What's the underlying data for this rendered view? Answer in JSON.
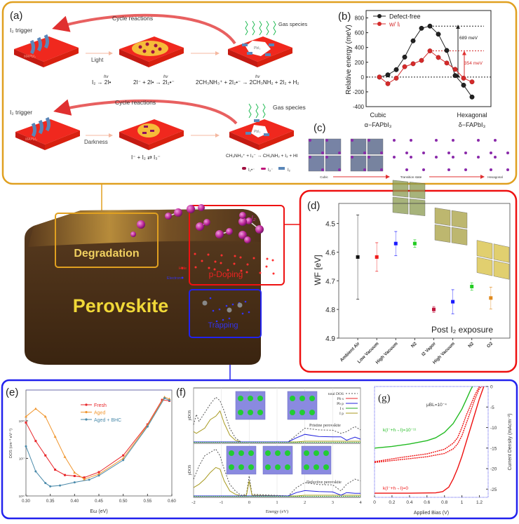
{
  "panel_a": {
    "label": "(a)",
    "row1": {
      "cycle": "Cycle reactions",
      "trigger": "I₂ trigger",
      "condition": "Light",
      "gas": "Gas species",
      "substrate": "MAPbI₃",
      "product": "PbI₂",
      "hv": "hν",
      "eq1": "I₂ → 2I•",
      "eq2": "2I⁻ + 2I• → 2I₂•⁻",
      "eq3": "2CH₃NH₃⁺ + 2I₂•⁻ → 2CH₃NH₂ + 2I₂ + H₂"
    },
    "row2": {
      "cycle": "Cycle reactions",
      "trigger": "I₂ trigger",
      "condition": "Darkness",
      "gas": "Gas species",
      "substrate": "MAPbI₃",
      "product": "PbI₂",
      "eq1": "I⁻ + I₂ ⇄ I₃⁻",
      "eq2": "CH₃NH₃⁺ + I₃⁻ → CH₃NH₂ + I₂ + HI"
    },
    "legend": [
      "I₂•⁻",
      "I₃⁻",
      "I₂"
    ]
  },
  "chart_data": [
    {
      "id": "b",
      "label": "(b)",
      "type": "line",
      "ylabel": "Relative energy (meV)",
      "ylim": [
        -400,
        900
      ],
      "yticks": [
        800,
        600,
        400,
        200,
        0,
        -200,
        -400
      ],
      "xcat_left": [
        "Cubic",
        "α−FAPbI₃"
      ],
      "xcat_right": [
        "Hexagonal",
        "δ−FAPbI₃"
      ],
      "x": [
        0,
        1,
        2,
        3,
        4,
        5,
        6,
        7,
        8,
        9,
        10,
        11
      ],
      "series": [
        {
          "name": "Defect-free",
          "color": "#222222",
          "values": [
            0,
            30,
            100,
            270,
            490,
            660,
            689,
            580,
            360,
            20,
            -110,
            -270
          ]
        },
        {
          "name": "w/ Iᵢ",
          "color": "#d42a2a",
          "values": [
            0,
            -90,
            -15,
            140,
            180,
            225,
            354,
            265,
            190,
            105,
            -15,
            -65
          ]
        }
      ],
      "annotations": [
        "689 meV",
        "354 meV"
      ]
    },
    {
      "id": "d",
      "label": "(d)",
      "type": "scatter",
      "ylabel": "WF [eV]",
      "ylim": [
        4.43,
        4.9
      ],
      "y_inverted": true,
      "yticks": [
        4.5,
        4.6,
        4.7,
        4.8,
        4.9
      ],
      "categories": [
        "Ambient Air",
        "Low Vacuum",
        "High Vacuum",
        "N2",
        "I2 Vapor",
        "High Vacuum",
        "N2",
        "O2"
      ],
      "values": [
        4.617,
        4.617,
        4.57,
        4.57,
        4.8,
        4.773,
        4.72,
        4.76
      ],
      "errors": [
        0.147,
        0.05,
        0.042,
        0.013,
        0.01,
        0.042,
        0.013,
        0.038
      ],
      "colors": [
        "#111111",
        "#ee1c1c",
        "#1a1aff",
        "#22cc22",
        "#c0143c",
        "#1a1aff",
        "#22cc22",
        "#e08a1e"
      ],
      "annotation": "Post I₂ exposure"
    },
    {
      "id": "e",
      "label": "(e)",
      "type": "line",
      "xlabel": "Eω (eV)",
      "ylabel": "DOS (cm⁻³ eV⁻¹)",
      "xlim": [
        0.3,
        0.6
      ],
      "xticks": [
        "0.30",
        "0.35",
        "0.40",
        "0.45",
        "0.50",
        "0.55",
        "0.60"
      ],
      "y_scale": "log",
      "ylim": [
        1e+16,
        6.6e+18
      ],
      "yticks": [
        "10¹⁶",
        "10¹⁷",
        "10¹⁸"
      ],
      "legend_position": "top-center",
      "series": [
        {
          "name": "Fresh",
          "color": "#e8262a",
          "x": [
            0.3,
            0.32,
            0.34,
            0.36,
            0.38,
            0.4,
            0.42,
            0.45,
            0.5,
            0.55,
            0.58,
            0.595
          ],
          "y": [
            9e+17,
            2.9e+17,
            1.2e+17,
            5e+16,
            3.6e+16,
            3.4e+16,
            3.1e+16,
            4.3e+16,
            1.2e+17,
            8e+17,
            3.6e+18,
            3.4e+18
          ]
        },
        {
          "name": "Aged",
          "color": "#f0962e",
          "x": [
            0.3,
            0.32,
            0.34,
            0.36,
            0.38,
            0.4,
            0.42,
            0.45,
            0.5,
            0.55,
            0.585,
            0.595
          ],
          "y": [
            1.3e+18,
            2.1e+18,
            1.3e+18,
            3.8e+17,
            1.1e+17,
            4.2e+16,
            2.8e+16,
            3.8e+16,
            1e+17,
            7.5e+17,
            4.3e+18,
            3.8e+18
          ]
        },
        {
          "name": "Aged + BHC",
          "color": "#4a8aaa",
          "x": [
            0.3,
            0.32,
            0.34,
            0.35,
            0.37,
            0.4,
            0.43,
            0.45,
            0.5,
            0.55,
            0.585,
            0.595
          ],
          "y": [
            2.1e+17,
            4.5e+16,
            2.2e+16,
            1.8e+16,
            1.9e+16,
            2.3e+16,
            2.7e+16,
            3.5e+16,
            9e+16,
            7e+17,
            4e+18,
            3.5e+18
          ]
        }
      ]
    },
    {
      "id": "f",
      "label": "(f)",
      "type": "line",
      "xlabel": "Energy (eV)",
      "ylabel": "pDOS",
      "xlim": [
        -2,
        4
      ],
      "xticks": [
        "-2",
        "-1",
        "0",
        "1",
        "2",
        "3",
        "4"
      ],
      "legend": [
        {
          "name": "total DOS",
          "color": "#555555",
          "dash": true
        },
        {
          "name": "Pb s",
          "color": "#e8262a"
        },
        {
          "name": "Pb p",
          "color": "#2222dd"
        },
        {
          "name": "I s",
          "color": "#22aa22"
        },
        {
          "name": "I p",
          "color": "#a89a20"
        }
      ],
      "subpanels": [
        {
          "name": "Pristine perovskite",
          "x": [
            -2,
            -1.9,
            -1.8,
            -1.6,
            -1.4,
            -1.2,
            -1.05,
            -0.9,
            -0.7,
            -0.5,
            -0.3,
            1.4,
            1.7,
            2.0,
            2.5,
            3.0,
            3.3,
            3.5,
            3.8,
            4.0
          ],
          "total": [
            0.5,
            0.8,
            0.6,
            0.85,
            1.1,
            1.3,
            1.2,
            0.9,
            0.4,
            0.12,
            0,
            0,
            0.2,
            0.4,
            0.35,
            0.34,
            0.25,
            0.3,
            0.45,
            0.35
          ],
          "Ip": [
            0.3,
            0.25,
            0.3,
            0.4,
            0.65,
            0.75,
            0.9,
            0.55,
            0.2,
            0.05,
            0,
            0,
            0,
            0.02,
            0.02,
            0.02,
            0.02,
            0.02,
            0.02,
            0.02
          ],
          "Pbp": [
            0,
            0,
            0,
            0,
            0,
            0,
            0,
            0,
            0,
            0,
            0,
            0,
            0.12,
            0.22,
            0.16,
            0.15,
            0.15,
            0.05,
            0.14,
            0.08
          ]
        },
        {
          "name": "Defective perovskite",
          "x": [
            -2,
            -1.8,
            -1.6,
            -1.4,
            -1.2,
            -1.05,
            -0.9,
            -0.7,
            -0.5,
            -0.3,
            -0.1,
            0,
            0.1,
            1.4,
            1.7,
            2.0,
            2.5,
            3.0,
            3.3,
            3.5,
            3.8,
            4.0
          ],
          "total": [
            0.5,
            0.9,
            1.2,
            1.3,
            1.4,
            1.2,
            0.8,
            0.35,
            0.15,
            0.02,
            0.05,
            0.6,
            0.05,
            0,
            0.25,
            0.4,
            0.34,
            0.33,
            0.15,
            0.35,
            0.5,
            0.45
          ],
          "Ip": [
            0.25,
            0.35,
            0.5,
            0.7,
            0.85,
            0.8,
            0.45,
            0.15,
            0.05,
            0,
            0.02,
            0.45,
            0.02,
            0,
            0,
            0.02,
            0.02,
            0.02,
            0.02,
            0.02,
            0.02,
            0.02
          ],
          "Pbp": [
            0,
            0,
            0,
            0,
            0,
            0,
            0,
            0,
            0,
            0,
            0,
            0,
            0,
            0,
            0.1,
            0.16,
            0.13,
            0.12,
            0.02,
            0.1,
            0.08,
            0.08
          ]
        }
      ]
    },
    {
      "id": "g",
      "label": "(g)",
      "type": "line",
      "xlabel": "Applied Bias (V)",
      "ylabel": "Current Density (mAcm⁻²)",
      "xlim": [
        0,
        1.3
      ],
      "ylim": [
        -27,
        0
      ],
      "xticks": [
        "0",
        "0.2",
        "0.4",
        "0.6",
        "0.8",
        "1",
        "1.2"
      ],
      "yticks": [
        "0",
        "-5",
        "-10",
        "-15",
        "-20",
        "-25"
      ],
      "annotations": [
        {
          "text": "μBL=10⁻⁴",
          "color": "#333333"
        },
        {
          "text": "k(I⁻+h→I)=10⁻¹¹",
          "color": "#22bb22"
        },
        {
          "text": "k(I⁻+h→I)=0",
          "color": "#ee1111"
        }
      ],
      "series": [
        {
          "color": "#22bb22",
          "dash": false,
          "x": [
            0,
            0.2,
            0.4,
            0.6,
            0.7,
            0.8,
            0.9,
            1.0,
            1.05,
            1.1,
            1.12
          ],
          "y": [
            -15,
            -14.6,
            -14,
            -13.2,
            -12.5,
            -11.2,
            -9,
            -5.5,
            -3.2,
            -0.8,
            0
          ]
        },
        {
          "color": "#ee1111",
          "dash": true,
          "x": [
            0,
            0.3,
            0.6,
            0.8,
            0.9,
            0.95,
            1.0,
            1.05,
            1.1,
            1.15,
            1.2,
            1.23
          ],
          "y": [
            -18.5,
            -17.8,
            -17.1,
            -16.3,
            -15.2,
            -14,
            -12,
            -9,
            -6,
            -3,
            -0.5,
            0
          ]
        },
        {
          "color": "#ee1111",
          "dash": true,
          "x": [
            0,
            0.3,
            0.6,
            0.8,
            0.9,
            0.95,
            1.0,
            1.05,
            1.1,
            1.15,
            1.2
          ],
          "y": [
            -18.3,
            -17.3,
            -16.4,
            -15.3,
            -13.8,
            -12.5,
            -10,
            -7,
            -4.5,
            -2,
            0
          ]
        },
        {
          "color": "#ee1111",
          "dash": false,
          "x": [
            0,
            0.4,
            0.7,
            0.78,
            0.85,
            0.9,
            0.95,
            1.0,
            1.05,
            1.1,
            1.15,
            1.2,
            1.25
          ],
          "y": [
            -26,
            -26,
            -25.9,
            -25.6,
            -24.5,
            -22.5,
            -20,
            -17,
            -13.5,
            -10,
            -6.5,
            -3,
            0
          ]
        }
      ]
    }
  ],
  "panel_c": {
    "label": "(c)",
    "stages": [
      "Cubic",
      "Transition state",
      "Hexagonal"
    ]
  },
  "center": {
    "title": "Perovskite",
    "degradation": "Degradation",
    "doping": "p-Doping",
    "trapping": "Trapping",
    "i2": "I₂",
    "hole": "Hole",
    "electron": "Electron"
  },
  "colors": {
    "orange_frame": "#e0a020",
    "red_frame": "#ee1111",
    "blue_frame": "#2222ee",
    "slab": "#f0281e",
    "block": "#4a3018"
  }
}
